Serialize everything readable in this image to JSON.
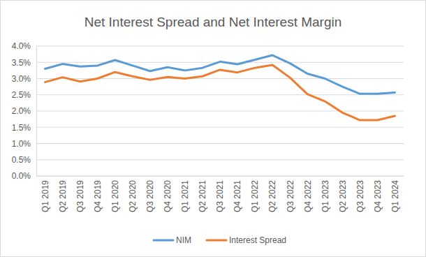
{
  "chart_data": {
    "type": "line",
    "title": "Net Interest Spread and Net Interest Margin",
    "categories": [
      "Q1 2019",
      "Q2 2019",
      "Q3 2019",
      "Q4 2019",
      "Q1 2020",
      "Q2 2020",
      "Q3 2020",
      "Q4 2020",
      "Q1 2021",
      "Q2 2021",
      "Q3 2021",
      "Q4 2021",
      "Q1 2022",
      "Q2 2022",
      "Q3 2022",
      "Q4 2022",
      "Q1 2023",
      "Q2 2023",
      "Q3 2023",
      "Q4 2023",
      "Q1 2024"
    ],
    "series": [
      {
        "name": "NIM",
        "color": "#5b9bd5",
        "values": [
          3.3,
          3.45,
          3.37,
          3.4,
          3.57,
          3.4,
          3.23,
          3.35,
          3.25,
          3.33,
          3.52,
          3.44,
          3.58,
          3.72,
          3.47,
          3.15,
          3.0,
          2.75,
          2.53,
          2.53,
          2.57
        ]
      },
      {
        "name": "Interest Spread",
        "color": "#ed7d31",
        "values": [
          2.89,
          3.04,
          2.91,
          3.0,
          3.2,
          3.07,
          2.96,
          3.05,
          3.0,
          3.07,
          3.27,
          3.19,
          3.33,
          3.42,
          3.03,
          2.52,
          2.3,
          1.95,
          1.72,
          1.72,
          1.85
        ]
      }
    ],
    "ylim": [
      0,
      4
    ],
    "yticks": [
      {
        "value": 0,
        "label": "0.0%"
      },
      {
        "value": 0.5,
        "label": "0.5%"
      },
      {
        "value": 1,
        "label": "1.0%"
      },
      {
        "value": 1.5,
        "label": "1.5%"
      },
      {
        "value": 2,
        "label": "2.0%"
      },
      {
        "value": 2.5,
        "label": "2.5%"
      },
      {
        "value": 3,
        "label": "3.0%"
      },
      {
        "value": 3.5,
        "label": "3.5%"
      },
      {
        "value": 4,
        "label": "4.0%"
      }
    ],
    "grid": true,
    "legend": "bottom"
  }
}
